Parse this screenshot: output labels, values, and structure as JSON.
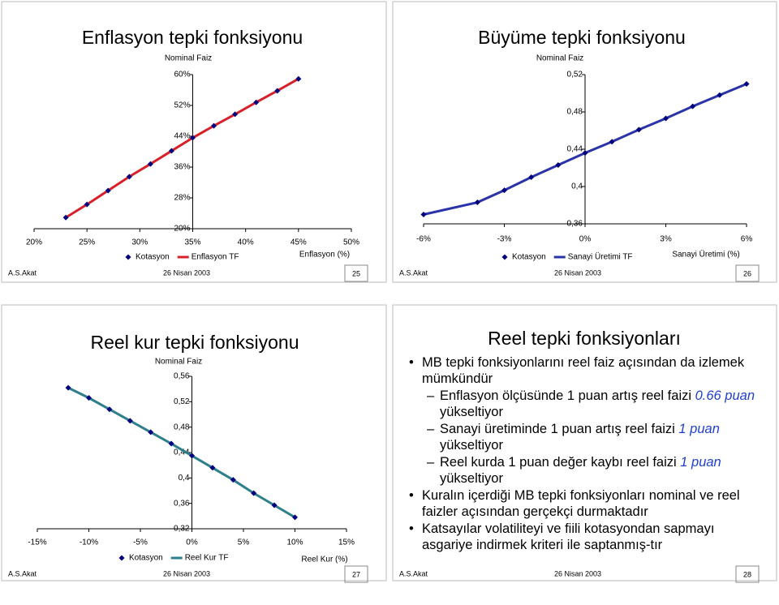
{
  "chart_data": [
    {
      "type": "line",
      "title": "Enflasyon tepki fonksiyonu",
      "y_label": "Nominal Faiz",
      "x_label": "Enflasyon (%)",
      "x": [
        23,
        25,
        27,
        29,
        31,
        33,
        35,
        37,
        39,
        41,
        43,
        45
      ],
      "series": [
        {
          "name": "Kotasyon",
          "color": "#000080",
          "style": "markers",
          "values": [
            22.9,
            26.3,
            29.9,
            33.5,
            36.8,
            40.2,
            43.6,
            46.7,
            49.7,
            52.8,
            55.8,
            58.9
          ]
        },
        {
          "name": "Enflasyon TF",
          "color": "#d8202a",
          "style": "line",
          "values": [
            22.9,
            26.3,
            29.9,
            33.5,
            36.8,
            40.2,
            43.6,
            46.7,
            49.7,
            52.8,
            55.8,
            58.9
          ]
        }
      ],
      "xlim": [
        20,
        50
      ],
      "ylim": [
        20,
        60
      ],
      "xticks": [
        {
          "value": 20,
          "label": "20%"
        },
        {
          "value": 25,
          "label": "25%"
        },
        {
          "value": 30,
          "label": "30%"
        },
        {
          "value": 35,
          "label": "35%"
        },
        {
          "value": 40,
          "label": "40%"
        },
        {
          "value": 45,
          "label": "45%"
        },
        {
          "value": 50,
          "label": "50%"
        }
      ],
      "yticks": [
        {
          "value": 20,
          "label": "20%"
        },
        {
          "value": 28,
          "label": "28%"
        },
        {
          "value": 36,
          "label": "36%"
        },
        {
          "value": 44,
          "label": "44%"
        },
        {
          "value": 52,
          "label": "52%"
        },
        {
          "value": 60,
          "label": "60%"
        }
      ]
    },
    {
      "type": "line",
      "title": "Büyüme tepki fonksiyonu",
      "y_label": "Nominal Faiz",
      "x_label": "Sanayi Üretimi (%)",
      "x": [
        -6,
        -4,
        -3,
        -2,
        -1,
        0,
        1,
        2,
        3,
        4,
        5,
        6
      ],
      "series": [
        {
          "name": "Kotasyon",
          "color": "#000080",
          "style": "markers",
          "values": [
            0.37,
            0.383,
            0.396,
            0.41,
            0.423,
            0.436,
            0.448,
            0.461,
            0.473,
            0.486,
            0.498,
            0.51
          ]
        },
        {
          "name": "Sanayi Üretimi TF",
          "color": "#2a34a8",
          "style": "line",
          "values": [
            0.37,
            0.383,
            0.396,
            0.41,
            0.423,
            0.436,
            0.448,
            0.461,
            0.473,
            0.486,
            0.498,
            0.51
          ]
        }
      ],
      "xlim": [
        -6,
        6
      ],
      "ylim": [
        0.36,
        0.52
      ],
      "xticks": [
        {
          "value": -6,
          "label": "-6%"
        },
        {
          "value": -3,
          "label": "-3%"
        },
        {
          "value": 0,
          "label": "0%"
        },
        {
          "value": 3,
          "label": "3%"
        },
        {
          "value": 6,
          "label": "6%"
        }
      ],
      "yticks": [
        {
          "value": 0.36,
          "label": "0,36"
        },
        {
          "value": 0.4,
          "label": "0,4"
        },
        {
          "value": 0.44,
          "label": "0,44"
        },
        {
          "value": 0.48,
          "label": "0,48"
        },
        {
          "value": 0.52,
          "label": "0,52"
        }
      ]
    },
    {
      "type": "line",
      "title": "Reel kur tepki fonksiyonu",
      "y_label": "Nominal Faiz",
      "x_label": "Reel Kur (%)",
      "x": [
        -12,
        -10,
        -8,
        -6,
        -4,
        -2,
        0,
        2,
        4,
        6,
        8,
        10
      ],
      "series": [
        {
          "name": "Kotasyon",
          "color": "#000080",
          "style": "markers",
          "values": [
            0.542,
            0.526,
            0.508,
            0.49,
            0.472,
            0.454,
            0.435,
            0.416,
            0.397,
            0.376,
            0.357,
            0.338
          ]
        },
        {
          "name": "Reel Kur TF",
          "color": "#2e7f8c",
          "style": "line",
          "values": [
            0.542,
            0.526,
            0.508,
            0.49,
            0.472,
            0.454,
            0.435,
            0.416,
            0.397,
            0.376,
            0.357,
            0.338
          ]
        }
      ],
      "xlim": [
        -15,
        15
      ],
      "ylim": [
        0.32,
        0.56
      ],
      "xticks": [
        {
          "value": -15,
          "label": "-15%"
        },
        {
          "value": -10,
          "label": "-10%"
        },
        {
          "value": -5,
          "label": "-5%"
        },
        {
          "value": 0,
          "label": "0%"
        },
        {
          "value": 5,
          "label": "5%"
        },
        {
          "value": 10,
          "label": "10%"
        },
        {
          "value": 15,
          "label": "15%"
        }
      ],
      "yticks": [
        {
          "value": 0.32,
          "label": "0,32"
        },
        {
          "value": 0.36,
          "label": "0,36"
        },
        {
          "value": 0.4,
          "label": "0,4"
        },
        {
          "value": 0.44,
          "label": "0,44"
        },
        {
          "value": 0.48,
          "label": "0,48"
        },
        {
          "value": 0.52,
          "label": "0,52"
        },
        {
          "value": 0.56,
          "label": "0,56"
        }
      ]
    }
  ],
  "text_slide": {
    "title": "Reel tepki fonksiyonları",
    "bullets": [
      {
        "text": "MB tepki fonksiyonlarını reel faiz açısından da izlemek mümkündür",
        "sub": [
          {
            "parts": [
              "Enflasyon ölçüsünde 1 puan artış reel faizi ",
              "0.66 puan",
              " yükseltiyor"
            ]
          },
          {
            "parts": [
              "Sanayi üretiminde 1 puan artış reel faizi ",
              "1 puan",
              " yükseltiyor"
            ]
          },
          {
            "parts": [
              "Reel kurda 1 puan değer kaybı reel faizi ",
              "1 puan",
              " yükseltiyor"
            ]
          }
        ]
      },
      {
        "text": "Kuralın içerdiği MB tepki fonksiyonları nominal ve reel faizler açısından gerçekçi durmaktadır"
      },
      {
        "text": "Katsayılar volatiliteyi ve fiili kotasyondan sapmayı asgariye indirmek kriteri ile saptanmış-tır"
      }
    ]
  },
  "footers": [
    {
      "author": "A.S.Akat",
      "date": "26 Nisan 2003",
      "page": 25
    },
    {
      "author": "A.S.Akat",
      "date": "26 Nisan 2003",
      "page": 26
    },
    {
      "author": "A.S.Akat",
      "date": "26 Nisan 2003",
      "page": 27
    },
    {
      "author": "A.S.Akat",
      "date": "26 Nisan 2003",
      "page": 28
    }
  ]
}
